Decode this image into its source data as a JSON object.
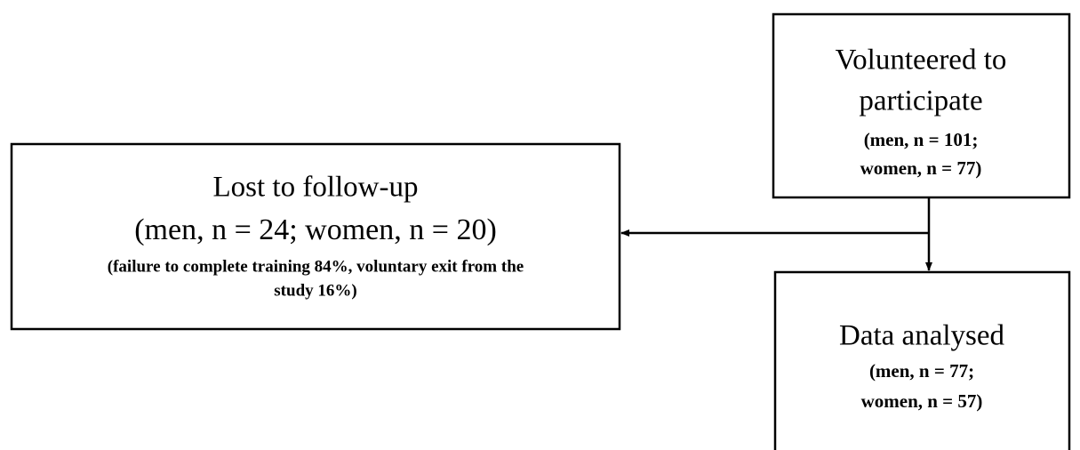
{
  "nodes": [
    {
      "title_lines": [
        "Volunteered to",
        "participate"
      ],
      "detail_lines": [
        "(men, n = 101;",
        "women, n = 77)"
      ]
    },
    {
      "title_lines": [
        "Lost to follow-up",
        "(men, n = 24; women, n = 20)"
      ],
      "detail_lines": [
        "(failure to complete training 84%, voluntary exit from the",
        "study 16%)"
      ]
    },
    {
      "title_lines": [
        "Data analysed"
      ],
      "detail_lines": [
        "(men, n = 77;",
        "women, n = 57)"
      ]
    }
  ]
}
